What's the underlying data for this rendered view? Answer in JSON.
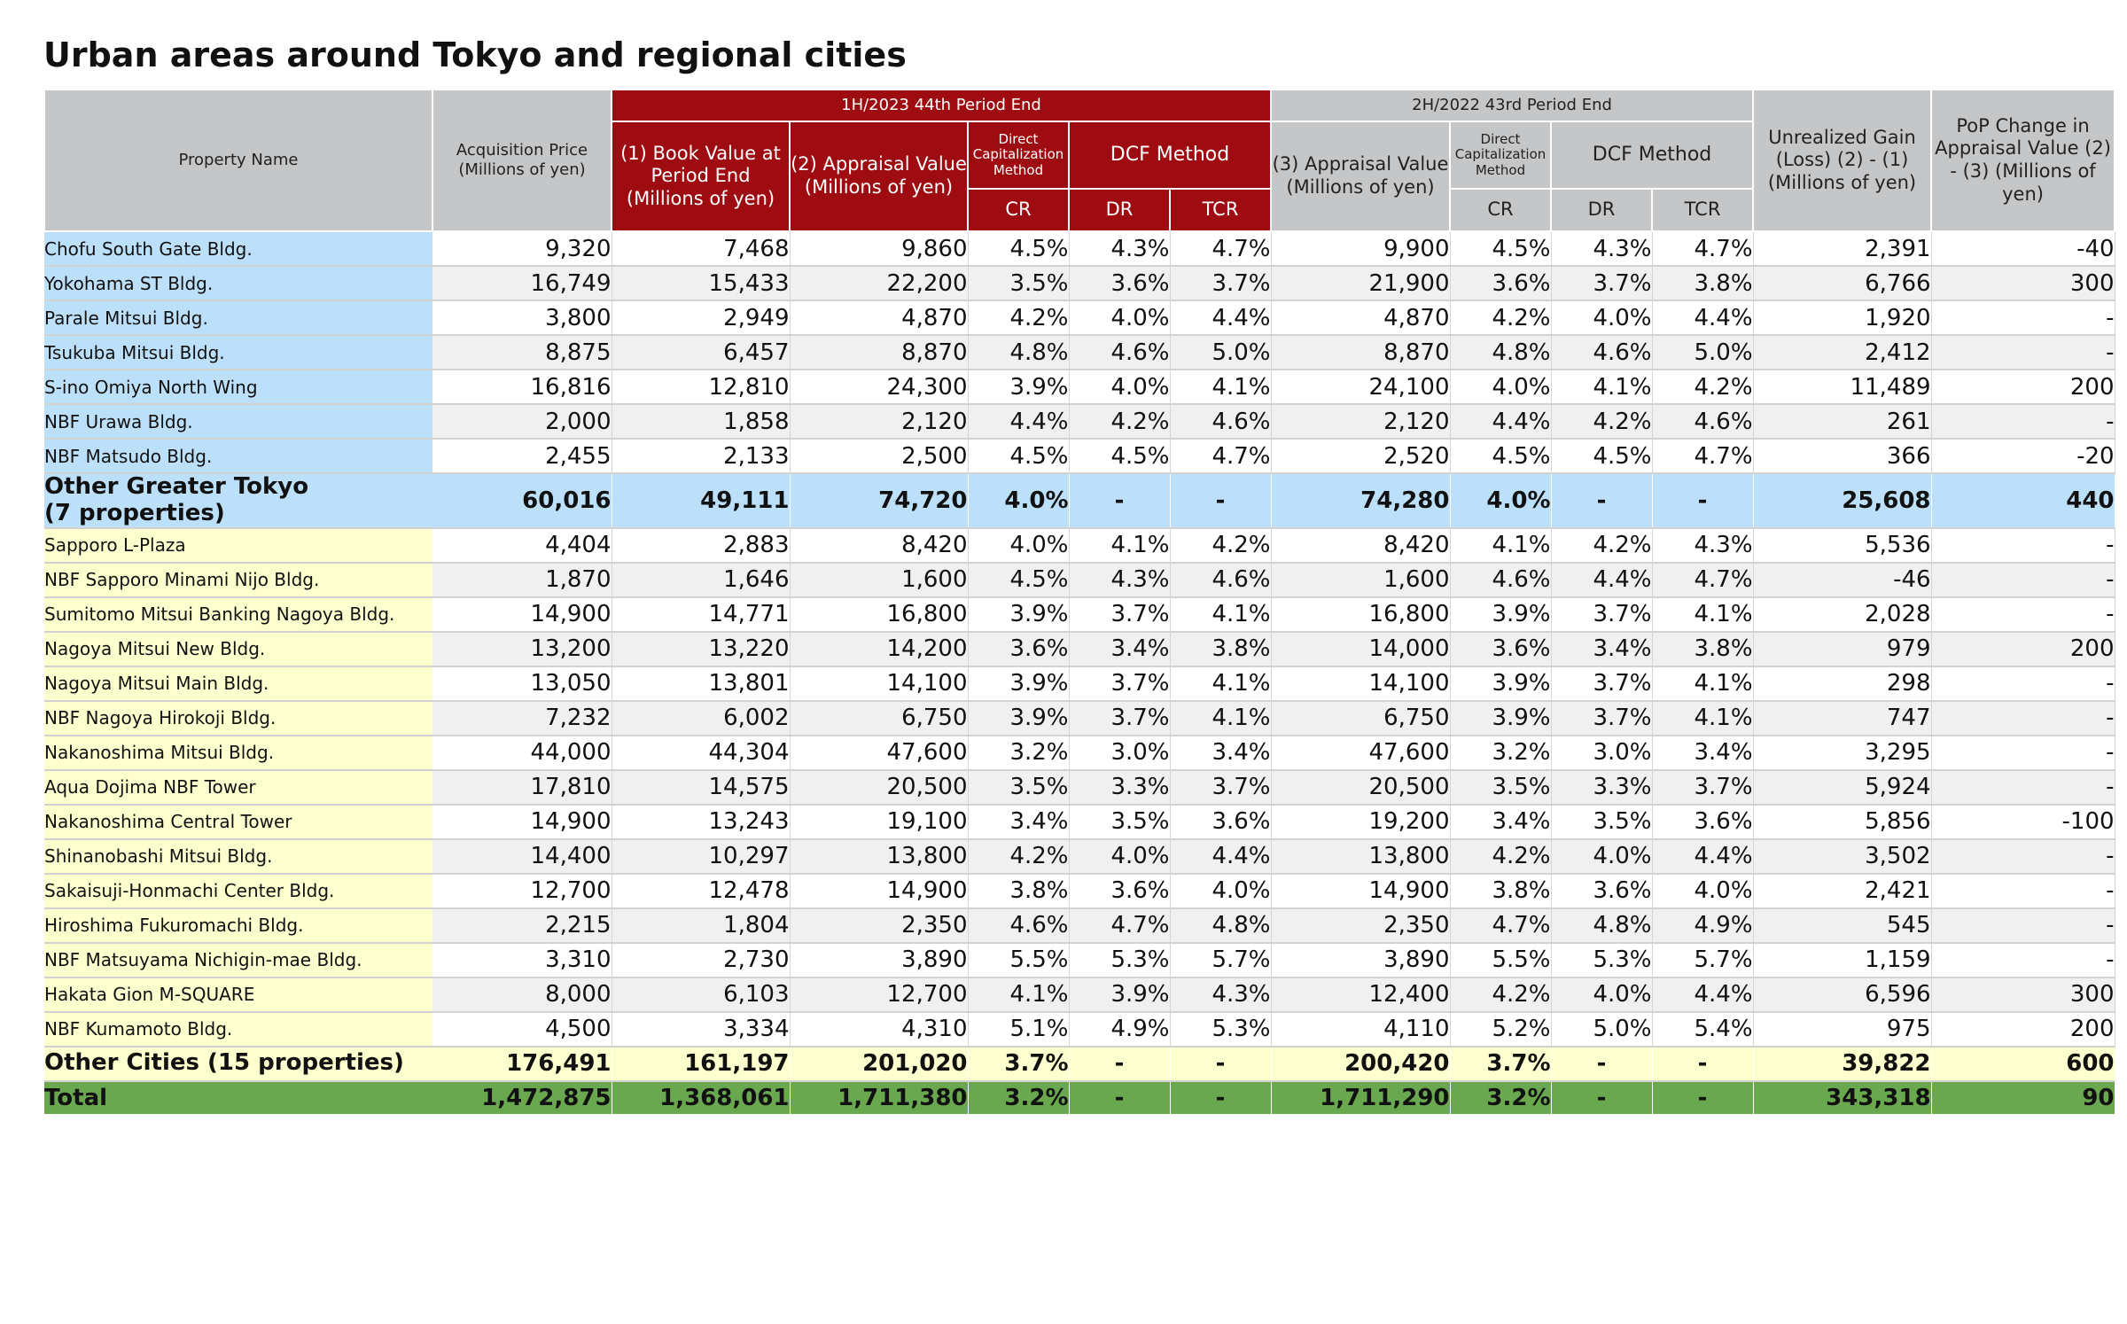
{
  "title": "Urban areas around Tokyo and regional cities",
  "header": {
    "property_name": "Property Name",
    "acquisition_price": "Acquisition Price\n(Millions of yen)",
    "period_current": "1H/2023  44th Period End",
    "period_previous": "2H/2022  43rd Period End",
    "book_value": "(1)\nBook Value at\nPeriod End\n(Millions of yen)",
    "appraisal_value_2": "(2)\nAppraisal Value\n(Millions of yen)",
    "appraisal_value_3": "(3)\nAppraisal Value\n(Millions of yen)",
    "direct_cap": "Direct\nCapitalization\nMethod",
    "dcf_method": "DCF Method",
    "cr": "CR",
    "dr": "DR",
    "tcr": "TCR",
    "unrealized_gain": "Unrealized Gain\n(Loss)\n(2) - (1)\n(Millions of yen)",
    "pop_change": "PoP Change in\nAppraisal Value\n(2) - (3)\n(Millions of yen)"
  },
  "tokyo_rows": [
    {
      "name": "Chofu South Gate Bldg.",
      "acq": "9,320",
      "book": "7,468",
      "appr2": "9,860",
      "cr2": "4.5%",
      "dr2": "4.3%",
      "tcr2": "4.7%",
      "appr3": "9,900",
      "cr3": "4.5%",
      "dr3": "4.3%",
      "tcr3": "4.7%",
      "gain": "2,391",
      "pop": "-40"
    },
    {
      "name": "Yokohama ST Bldg.",
      "acq": "16,749",
      "book": "15,433",
      "appr2": "22,200",
      "cr2": "3.5%",
      "dr2": "3.6%",
      "tcr2": "3.7%",
      "appr3": "21,900",
      "cr3": "3.6%",
      "dr3": "3.7%",
      "tcr3": "3.8%",
      "gain": "6,766",
      "pop": "300"
    },
    {
      "name": "Parale Mitsui Bldg.",
      "acq": "3,800",
      "book": "2,949",
      "appr2": "4,870",
      "cr2": "4.2%",
      "dr2": "4.0%",
      "tcr2": "4.4%",
      "appr3": "4,870",
      "cr3": "4.2%",
      "dr3": "4.0%",
      "tcr3": "4.4%",
      "gain": "1,920",
      "pop": "-"
    },
    {
      "name": "Tsukuba Mitsui Bldg.",
      "acq": "8,875",
      "book": "6,457",
      "appr2": "8,870",
      "cr2": "4.8%",
      "dr2": "4.6%",
      "tcr2": "5.0%",
      "appr3": "8,870",
      "cr3": "4.8%",
      "dr3": "4.6%",
      "tcr3": "5.0%",
      "gain": "2,412",
      "pop": "-"
    },
    {
      "name": "S-ino Omiya North Wing",
      "acq": "16,816",
      "book": "12,810",
      "appr2": "24,300",
      "cr2": "3.9%",
      "dr2": "4.0%",
      "tcr2": "4.1%",
      "appr3": "24,100",
      "cr3": "4.0%",
      "dr3": "4.1%",
      "tcr3": "4.2%",
      "gain": "11,489",
      "pop": "200"
    },
    {
      "name": "NBF Urawa Bldg.",
      "acq": "2,000",
      "book": "1,858",
      "appr2": "2,120",
      "cr2": "4.4%",
      "dr2": "4.2%",
      "tcr2": "4.6%",
      "appr3": "2,120",
      "cr3": "4.4%",
      "dr3": "4.2%",
      "tcr3": "4.6%",
      "gain": "261",
      "pop": "-"
    },
    {
      "name": "NBF Matsudo Bldg.",
      "acq": "2,455",
      "book": "2,133",
      "appr2": "2,500",
      "cr2": "4.5%",
      "dr2": "4.5%",
      "tcr2": "4.7%",
      "appr3": "2,520",
      "cr3": "4.5%",
      "dr3": "4.5%",
      "tcr3": "4.7%",
      "gain": "366",
      "pop": "-20"
    }
  ],
  "tokyo_subtotal": {
    "name": "Other Greater Tokyo\n(7 properties)",
    "acq": "60,016",
    "book": "49,111",
    "appr2": "74,720",
    "cr2": "4.0%",
    "dr2": "-",
    "tcr2": "-",
    "appr3": "74,280",
    "cr3": "4.0%",
    "dr3": "-",
    "tcr3": "-",
    "gain": "25,608",
    "pop": "440"
  },
  "region_rows": [
    {
      "name": "Sapporo L-Plaza",
      "acq": "4,404",
      "book": "2,883",
      "appr2": "8,420",
      "cr2": "4.0%",
      "dr2": "4.1%",
      "tcr2": "4.2%",
      "appr3": "8,420",
      "cr3": "4.1%",
      "dr3": "4.2%",
      "tcr3": "4.3%",
      "gain": "5,536",
      "pop": "-"
    },
    {
      "name": "NBF Sapporo Minami Nijo Bldg.",
      "acq": "1,870",
      "book": "1,646",
      "appr2": "1,600",
      "cr2": "4.5%",
      "dr2": "4.3%",
      "tcr2": "4.6%",
      "appr3": "1,600",
      "cr3": "4.6%",
      "dr3": "4.4%",
      "tcr3": "4.7%",
      "gain": "-46",
      "pop": "-"
    },
    {
      "name": "Sumitomo Mitsui Banking Nagoya Bldg.",
      "acq": "14,900",
      "book": "14,771",
      "appr2": "16,800",
      "cr2": "3.9%",
      "dr2": "3.7%",
      "tcr2": "4.1%",
      "appr3": "16,800",
      "cr3": "3.9%",
      "dr3": "3.7%",
      "tcr3": "4.1%",
      "gain": "2,028",
      "pop": "-"
    },
    {
      "name": "Nagoya Mitsui New Bldg.",
      "acq": "13,200",
      "book": "13,220",
      "appr2": "14,200",
      "cr2": "3.6%",
      "dr2": "3.4%",
      "tcr2": "3.8%",
      "appr3": "14,000",
      "cr3": "3.6%",
      "dr3": "3.4%",
      "tcr3": "3.8%",
      "gain": "979",
      "pop": "200"
    },
    {
      "name": "Nagoya Mitsui Main Bldg.",
      "acq": "13,050",
      "book": "13,801",
      "appr2": "14,100",
      "cr2": "3.9%",
      "dr2": "3.7%",
      "tcr2": "4.1%",
      "appr3": "14,100",
      "cr3": "3.9%",
      "dr3": "3.7%",
      "tcr3": "4.1%",
      "gain": "298",
      "pop": "-"
    },
    {
      "name": "NBF Nagoya Hirokoji Bldg.",
      "acq": "7,232",
      "book": "6,002",
      "appr2": "6,750",
      "cr2": "3.9%",
      "dr2": "3.7%",
      "tcr2": "4.1%",
      "appr3": "6,750",
      "cr3": "3.9%",
      "dr3": "3.7%",
      "tcr3": "4.1%",
      "gain": "747",
      "pop": "-"
    },
    {
      "name": "Nakanoshima Mitsui Bldg.",
      "acq": "44,000",
      "book": "44,304",
      "appr2": "47,600",
      "cr2": "3.2%",
      "dr2": "3.0%",
      "tcr2": "3.4%",
      "appr3": "47,600",
      "cr3": "3.2%",
      "dr3": "3.0%",
      "tcr3": "3.4%",
      "gain": "3,295",
      "pop": "-"
    },
    {
      "name": "Aqua Dojima NBF Tower",
      "acq": "17,810",
      "book": "14,575",
      "appr2": "20,500",
      "cr2": "3.5%",
      "dr2": "3.3%",
      "tcr2": "3.7%",
      "appr3": "20,500",
      "cr3": "3.5%",
      "dr3": "3.3%",
      "tcr3": "3.7%",
      "gain": "5,924",
      "pop": "-"
    },
    {
      "name": "Nakanoshima Central Tower",
      "acq": "14,900",
      "book": "13,243",
      "appr2": "19,100",
      "cr2": "3.4%",
      "dr2": "3.5%",
      "tcr2": "3.6%",
      "appr3": "19,200",
      "cr3": "3.4%",
      "dr3": "3.5%",
      "tcr3": "3.6%",
      "gain": "5,856",
      "pop": "-100"
    },
    {
      "name": "Shinanobashi Mitsui Bldg.",
      "acq": "14,400",
      "book": "10,297",
      "appr2": "13,800",
      "cr2": "4.2%",
      "dr2": "4.0%",
      "tcr2": "4.4%",
      "appr3": "13,800",
      "cr3": "4.2%",
      "dr3": "4.0%",
      "tcr3": "4.4%",
      "gain": "3,502",
      "pop": "-"
    },
    {
      "name": "Sakaisuji-Honmachi Center Bldg.",
      "acq": "12,700",
      "book": "12,478",
      "appr2": "14,900",
      "cr2": "3.8%",
      "dr2": "3.6%",
      "tcr2": "4.0%",
      "appr3": "14,900",
      "cr3": "3.8%",
      "dr3": "3.6%",
      "tcr3": "4.0%",
      "gain": "2,421",
      "pop": "-"
    },
    {
      "name": "Hiroshima Fukuromachi Bldg.",
      "acq": "2,215",
      "book": "1,804",
      "appr2": "2,350",
      "cr2": "4.6%",
      "dr2": "4.7%",
      "tcr2": "4.8%",
      "appr3": "2,350",
      "cr3": "4.7%",
      "dr3": "4.8%",
      "tcr3": "4.9%",
      "gain": "545",
      "pop": "-"
    },
    {
      "name": "NBF Matsuyama Nichigin-mae Bldg.",
      "acq": "3,310",
      "book": "2,730",
      "appr2": "3,890",
      "cr2": "5.5%",
      "dr2": "5.3%",
      "tcr2": "5.7%",
      "appr3": "3,890",
      "cr3": "5.5%",
      "dr3": "5.3%",
      "tcr3": "5.7%",
      "gain": "1,159",
      "pop": "-"
    },
    {
      "name": "Hakata Gion M-SQUARE",
      "acq": "8,000",
      "book": "6,103",
      "appr2": "12,700",
      "cr2": "4.1%",
      "dr2": "3.9%",
      "tcr2": "4.3%",
      "appr3": "12,400",
      "cr3": "4.2%",
      "dr3": "4.0%",
      "tcr3": "4.4%",
      "gain": "6,596",
      "pop": "300"
    },
    {
      "name": "NBF Kumamoto Bldg.",
      "acq": "4,500",
      "book": "3,334",
      "appr2": "4,310",
      "cr2": "5.1%",
      "dr2": "4.9%",
      "tcr2": "5.3%",
      "appr3": "4,110",
      "cr3": "5.2%",
      "dr3": "5.0%",
      "tcr3": "5.4%",
      "gain": "975",
      "pop": "200"
    }
  ],
  "region_subtotal": {
    "name": "Other Cities (15 properties)",
    "acq": "176,491",
    "book": "161,197",
    "appr2": "201,020",
    "cr2": "3.7%",
    "dr2": "-",
    "tcr2": "-",
    "appr3": "200,420",
    "cr3": "3.7%",
    "dr3": "-",
    "tcr3": "-",
    "gain": "39,822",
    "pop": "600"
  },
  "total": {
    "name": "Total",
    "acq": "1,472,875",
    "book": "1,368,061",
    "appr2": "1,711,380",
    "cr2": "3.2%",
    "dr2": "-",
    "tcr2": "-",
    "appr3": "1,711,290",
    "cr3": "3.2%",
    "dr3": "-",
    "tcr3": "-",
    "gain": "343,318",
    "pop": "90"
  },
  "colors": {
    "header_gray": "#c4c6c8",
    "header_red": "#9e0b10",
    "tokyo_blue": "#bde0fa",
    "region_yellow": "#feffce",
    "total_green": "#6aa84f",
    "alt_row": "#f0f0f0"
  }
}
